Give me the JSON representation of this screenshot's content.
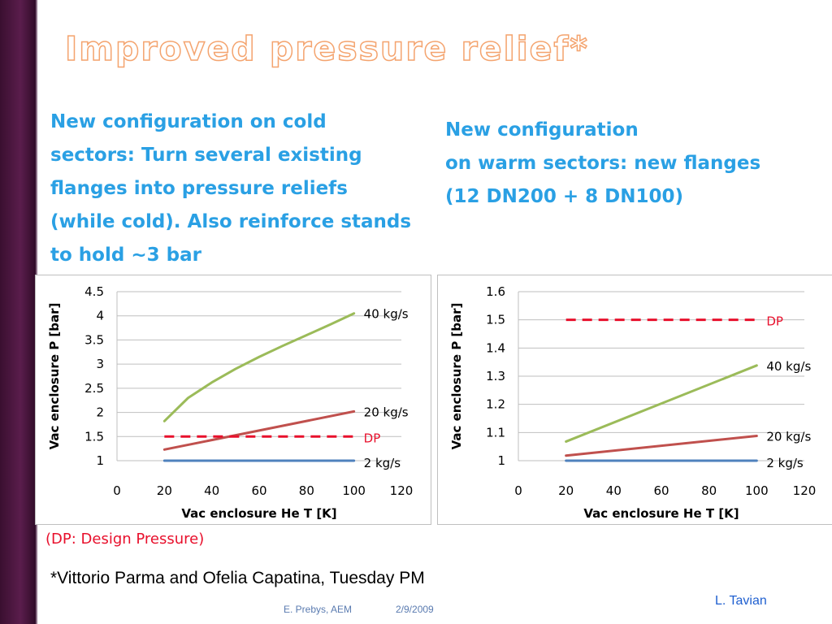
{
  "slide": {
    "title": "Improved pressure relief*",
    "left_text": "New configuration on cold sectors:  Turn several existing flanges into pressure reliefs (while cold). Also reinforce stands to hold ~3 bar",
    "right_text_lines": [
      "New configuration",
      "on warm sectors: new flanges",
      "(12 DN200 + 8 DN100)"
    ],
    "note": "(DP: Design Pressure)",
    "credit": "*Vittorio Parma and Ofelia Capatina, Tuesday PM",
    "author": "L. Tavian",
    "footer_left": "E. Prebys, AEM",
    "footer_right": "2/9/2009"
  },
  "colors": {
    "title_outline": "#f4a46f",
    "body_text": "#2aa0e4",
    "note_text": "#e8102c",
    "series_40": "#9bbb59",
    "series_20": "#c0504d",
    "series_2": "#4f81bd",
    "dp": "#e8102c",
    "grid": "#bfbfbf"
  },
  "chart_data": [
    {
      "type": "line",
      "xlabel": "Vac enclosure He T [K]",
      "ylabel": "Vac enclosure P [bar]",
      "xlim": [
        0,
        120
      ],
      "ylim": [
        1,
        4.5
      ],
      "xticks": [
        0,
        20,
        40,
        60,
        80,
        100,
        120
      ],
      "yticks": [
        1,
        1.5,
        2,
        2.5,
        3,
        3.5,
        4,
        4.5
      ],
      "ytick_labels": [
        "1",
        "1.5",
        "2",
        "2.5",
        "3",
        "3.5",
        "4",
        "4.5"
      ],
      "grid": "horizontal",
      "series": [
        {
          "name": "40 kg/s",
          "x": [
            20,
            30,
            40,
            50,
            60,
            70,
            80,
            90,
            100
          ],
          "y": [
            1.82,
            2.3,
            2.62,
            2.9,
            3.15,
            3.38,
            3.6,
            3.82,
            4.05
          ],
          "style": "solid",
          "color_key": "series_40"
        },
        {
          "name": "20 kg/s",
          "x": [
            20,
            100
          ],
          "y": [
            1.23,
            2.02
          ],
          "style": "solid",
          "color_key": "series_20"
        },
        {
          "name": "DP",
          "x": [
            20,
            100
          ],
          "y": [
            1.5,
            1.5
          ],
          "style": "dashed",
          "color_key": "dp"
        },
        {
          "name": "2 kg/s",
          "x": [
            20,
            100
          ],
          "y": [
            1.0,
            1.0
          ],
          "style": "solid",
          "color_key": "series_2"
        }
      ]
    },
    {
      "type": "line",
      "xlabel": "Vac enclosure He T [K]",
      "ylabel": "Vac enclosure P [bar]",
      "xlim": [
        0,
        120
      ],
      "ylim": [
        1,
        1.6
      ],
      "xticks": [
        0,
        20,
        40,
        60,
        80,
        100,
        120
      ],
      "yticks": [
        1,
        1.1,
        1.2,
        1.3,
        1.4,
        1.5,
        1.6
      ],
      "ytick_labels": [
        "1",
        "1.1",
        "1.2",
        "1.3",
        "1.4",
        "1.5",
        "1.6"
      ],
      "grid": "horizontal",
      "series": [
        {
          "name": "DP",
          "x": [
            20,
            100
          ],
          "y": [
            1.5,
            1.5
          ],
          "style": "dashed",
          "color_key": "dp"
        },
        {
          "name": "40 kg/s",
          "x": [
            20,
            100
          ],
          "y": [
            1.068,
            1.338
          ],
          "style": "solid",
          "color_key": "series_40"
        },
        {
          "name": "20 kg/s",
          "x": [
            20,
            100
          ],
          "y": [
            1.018,
            1.088
          ],
          "style": "solid",
          "color_key": "series_20"
        },
        {
          "name": "2 kg/s",
          "x": [
            20,
            100
          ],
          "y": [
            1.0,
            1.0
          ],
          "style": "solid",
          "color_key": "series_2"
        }
      ]
    }
  ]
}
